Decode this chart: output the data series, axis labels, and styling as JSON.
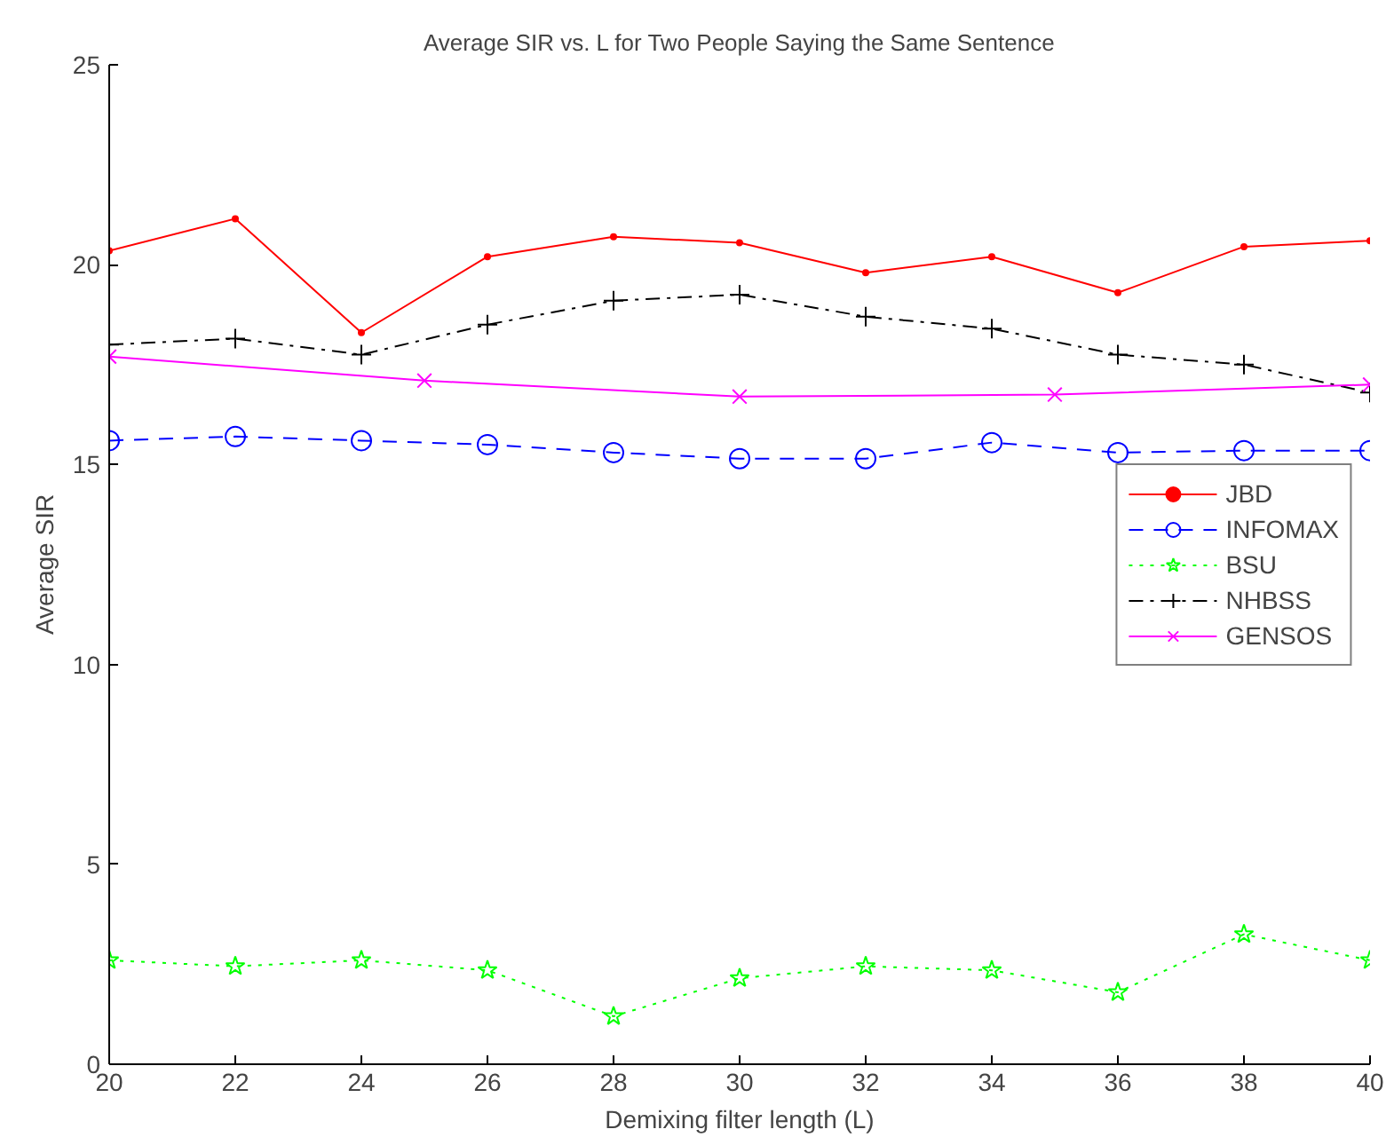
{
  "chart_data": {
    "type": "line",
    "title": "Average SIR vs. L for Two People Saying the Same Sentence",
    "xlabel": "Demixing filter length (L)",
    "ylabel": "Average SIR",
    "x": [
      20,
      22,
      24,
      26,
      28,
      30,
      32,
      34,
      36,
      38,
      40
    ],
    "series": [
      {
        "name": "JBD",
        "color": "#ff0000",
        "marker": "dot",
        "line_style": "solid",
        "values": [
          20.35,
          21.15,
          18.3,
          20.2,
          20.7,
          20.55,
          19.8,
          20.2,
          19.3,
          20.45,
          20.6
        ]
      },
      {
        "name": "INFOMAX",
        "color": "#0000ff",
        "marker": "circle",
        "line_style": "dashed",
        "values": [
          15.6,
          15.7,
          15.6,
          15.5,
          15.3,
          15.15,
          15.15,
          15.55,
          15.3,
          15.35,
          15.35
        ]
      },
      {
        "name": "BSU",
        "color": "#00ff00",
        "marker": "star",
        "line_style": "dotted",
        "values": [
          2.6,
          2.45,
          2.6,
          2.35,
          1.2,
          2.15,
          2.45,
          2.35,
          1.8,
          3.25,
          2.6
        ]
      },
      {
        "name": "NHBSS",
        "color": "#000000",
        "marker": "cross",
        "line_style": "dashdot",
        "values": [
          18.0,
          18.15,
          17.75,
          18.5,
          19.1,
          19.25,
          18.7,
          18.4,
          17.75,
          17.5,
          16.8
        ]
      },
      {
        "name": "GENSOS",
        "color": "#ff00ff",
        "marker": "x",
        "line_style": "solid",
        "x": [
          20,
          25,
          30,
          35,
          40
        ],
        "values": [
          17.7,
          17.1,
          16.7,
          16.75,
          17.0
        ]
      }
    ],
    "xlim": [
      20,
      40
    ],
    "xticks": [
      20,
      22,
      24,
      26,
      28,
      30,
      32,
      34,
      36,
      38,
      40
    ],
    "ylim": [
      0,
      25
    ],
    "yticks": [
      0,
      5,
      10,
      15,
      20,
      25
    ],
    "grid": false,
    "legend": "right"
  }
}
